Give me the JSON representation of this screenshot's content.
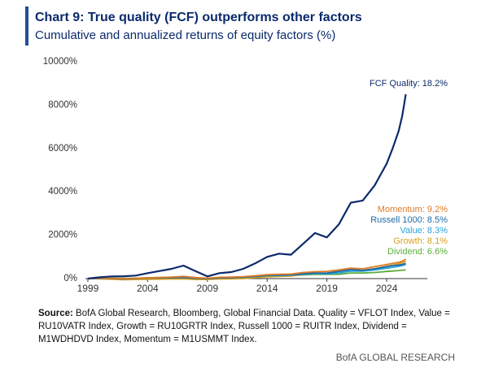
{
  "chart_data": {
    "type": "line",
    "title": "Chart 9: True quality (FCF) outperforms other factors",
    "subtitle": "Cumulative and annualized returns of equity factors (%)",
    "x": [
      1999,
      2000,
      2001,
      2002,
      2003,
      2004,
      2005,
      2006,
      2007,
      2008,
      2009,
      2010,
      2011,
      2012,
      2013,
      2014,
      2015,
      2016,
      2017,
      2018,
      2019,
      2020,
      2021,
      2022,
      2023,
      2024,
      2024.5,
      2025,
      2025.3,
      2025.6
    ],
    "xlim": [
      1998.8,
      2027.4
    ],
    "xticks": [
      1999,
      2004,
      2009,
      2014,
      2019,
      2024
    ],
    "ylim": [
      0,
      10000
    ],
    "yticks": [
      {
        "value": 0,
        "label": "0%"
      },
      {
        "value": 2000,
        "label": "2000%"
      },
      {
        "value": 4000,
        "label": "4000%"
      },
      {
        "value": 6000,
        "label": "6000%"
      },
      {
        "value": 8000,
        "label": "8000%"
      },
      {
        "value": 10000,
        "label": "10000%"
      }
    ],
    "grid": false,
    "series": [
      {
        "name": "FCF Quality: 18.2%",
        "color": "#0b2a6b",
        "values": [
          0,
          60,
          100,
          110,
          140,
          250,
          350,
          450,
          600,
          350,
          100,
          250,
          300,
          450,
          700,
          1000,
          1150,
          1100,
          1600,
          2100,
          1900,
          2500,
          3500,
          3600,
          4300,
          5300,
          6000,
          6800,
          7500,
          8500
        ]
      },
      {
        "name": "Momentum: 9.2%",
        "color": "#e07b26",
        "values": [
          0,
          20,
          10,
          0,
          10,
          30,
          50,
          70,
          100,
          50,
          20,
          60,
          70,
          90,
          130,
          180,
          200,
          210,
          280,
          320,
          330,
          400,
          480,
          450,
          550,
          650,
          700,
          750,
          800,
          900
        ]
      },
      {
        "name": "Russell 1000: 8.5%",
        "color": "#1f6aa5",
        "values": [
          0,
          10,
          0,
          -20,
          0,
          20,
          30,
          40,
          50,
          20,
          0,
          30,
          40,
          60,
          100,
          150,
          160,
          170,
          220,
          260,
          250,
          330,
          420,
          380,
          450,
          550,
          600,
          620,
          650,
          700
        ]
      },
      {
        "name": "Value: 8.3%",
        "color": "#29a3d9",
        "values": [
          0,
          10,
          15,
          0,
          10,
          30,
          40,
          55,
          60,
          20,
          10,
          40,
          45,
          60,
          100,
          140,
          140,
          160,
          200,
          230,
          210,
          260,
          350,
          340,
          400,
          480,
          520,
          560,
          600,
          650
        ]
      },
      {
        "name": "Growth: 8.1%",
        "color": "#d9a21e",
        "values": [
          0,
          -10,
          -30,
          -50,
          -40,
          -30,
          -25,
          -20,
          -10,
          -40,
          -40,
          -20,
          -10,
          0,
          40,
          80,
          100,
          120,
          190,
          230,
          240,
          340,
          450,
          380,
          460,
          570,
          620,
          680,
          730,
          800
        ]
      },
      {
        "name": "Dividend: 6.6%",
        "color": "#5aae3c",
        "values": [
          0,
          10,
          15,
          10,
          20,
          40,
          50,
          60,
          70,
          30,
          20,
          40,
          60,
          70,
          100,
          130,
          130,
          140,
          170,
          190,
          190,
          200,
          260,
          260,
          280,
          330,
          350,
          370,
          390,
          400
        ]
      }
    ],
    "source": {
      "label": "Source:",
      "text": "BofA Global Research, Bloomberg, Global Financial Data. Quality = VFLOT Index, Value = RU10VATR Index, Growth = RU10GRTR Index, Russell 1000 = RUITR Index, Dividend = M1WDHDVD Index, Momentum = M1USMMT Index."
    },
    "footer": "BofA GLOBAL RESEARCH"
  }
}
